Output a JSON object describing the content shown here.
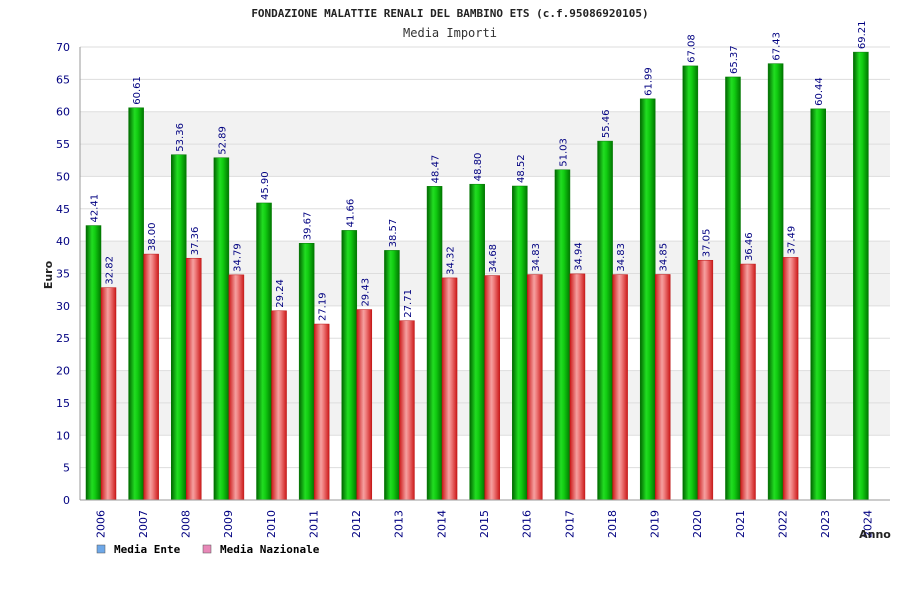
{
  "chart_data": {
    "type": "bar",
    "title": "FONDAZIONE MALATTIE RENALI DEL BAMBINO ETS (c.f.95086920105)",
    "subtitle": "Media Importi",
    "xlabel": "Anno",
    "ylabel": "Euro",
    "ylim": [
      0,
      70
    ],
    "yticks": [
      0,
      5,
      10,
      15,
      20,
      25,
      30,
      35,
      40,
      45,
      50,
      55,
      60,
      65,
      70
    ],
    "grid": true,
    "legend_position": "bottom-left",
    "categories": [
      "2006",
      "2007",
      "2008",
      "2009",
      "2010",
      "2011",
      "2012",
      "2013",
      "2014",
      "2015",
      "2016",
      "2017",
      "2018",
      "2019",
      "2020",
      "2021",
      "2022",
      "2023",
      "2024"
    ],
    "series": [
      {
        "name": "Media Ente",
        "color": "#00aa00",
        "legend_color": "#6ea8e8",
        "values": [
          42.41,
          60.61,
          53.36,
          52.89,
          45.9,
          39.67,
          41.66,
          38.57,
          48.47,
          48.8,
          48.52,
          51.03,
          55.46,
          61.99,
          67.08,
          65.37,
          67.43,
          60.44,
          69.21
        ],
        "labels": [
          "42.41",
          "60.61",
          "53.36",
          "52.89",
          "45.90",
          "39.67",
          "41.66",
          "38.57",
          "48.47",
          "48.80",
          "48.52",
          "51.03",
          "55.46",
          "61.99",
          "67.08",
          "65.37",
          "67.43",
          "60.44",
          "69.21"
        ]
      },
      {
        "name": "Media Nazionale",
        "color": "#e03030",
        "legend_color": "#e888b8",
        "values": [
          32.82,
          38.0,
          37.36,
          34.79,
          29.24,
          27.19,
          29.43,
          27.71,
          34.32,
          34.68,
          34.83,
          34.94,
          34.83,
          34.85,
          37.05,
          36.46,
          37.49,
          null,
          null
        ],
        "labels": [
          "32.82",
          "38.00",
          "37.36",
          "34.79",
          "29.24",
          "27.19",
          "29.43",
          "27.71",
          "34.32",
          "34.68",
          "34.83",
          "34.94",
          "34.83",
          "34.85",
          "37.05",
          "36.46",
          "37.49",
          null,
          null
        ]
      }
    ]
  }
}
